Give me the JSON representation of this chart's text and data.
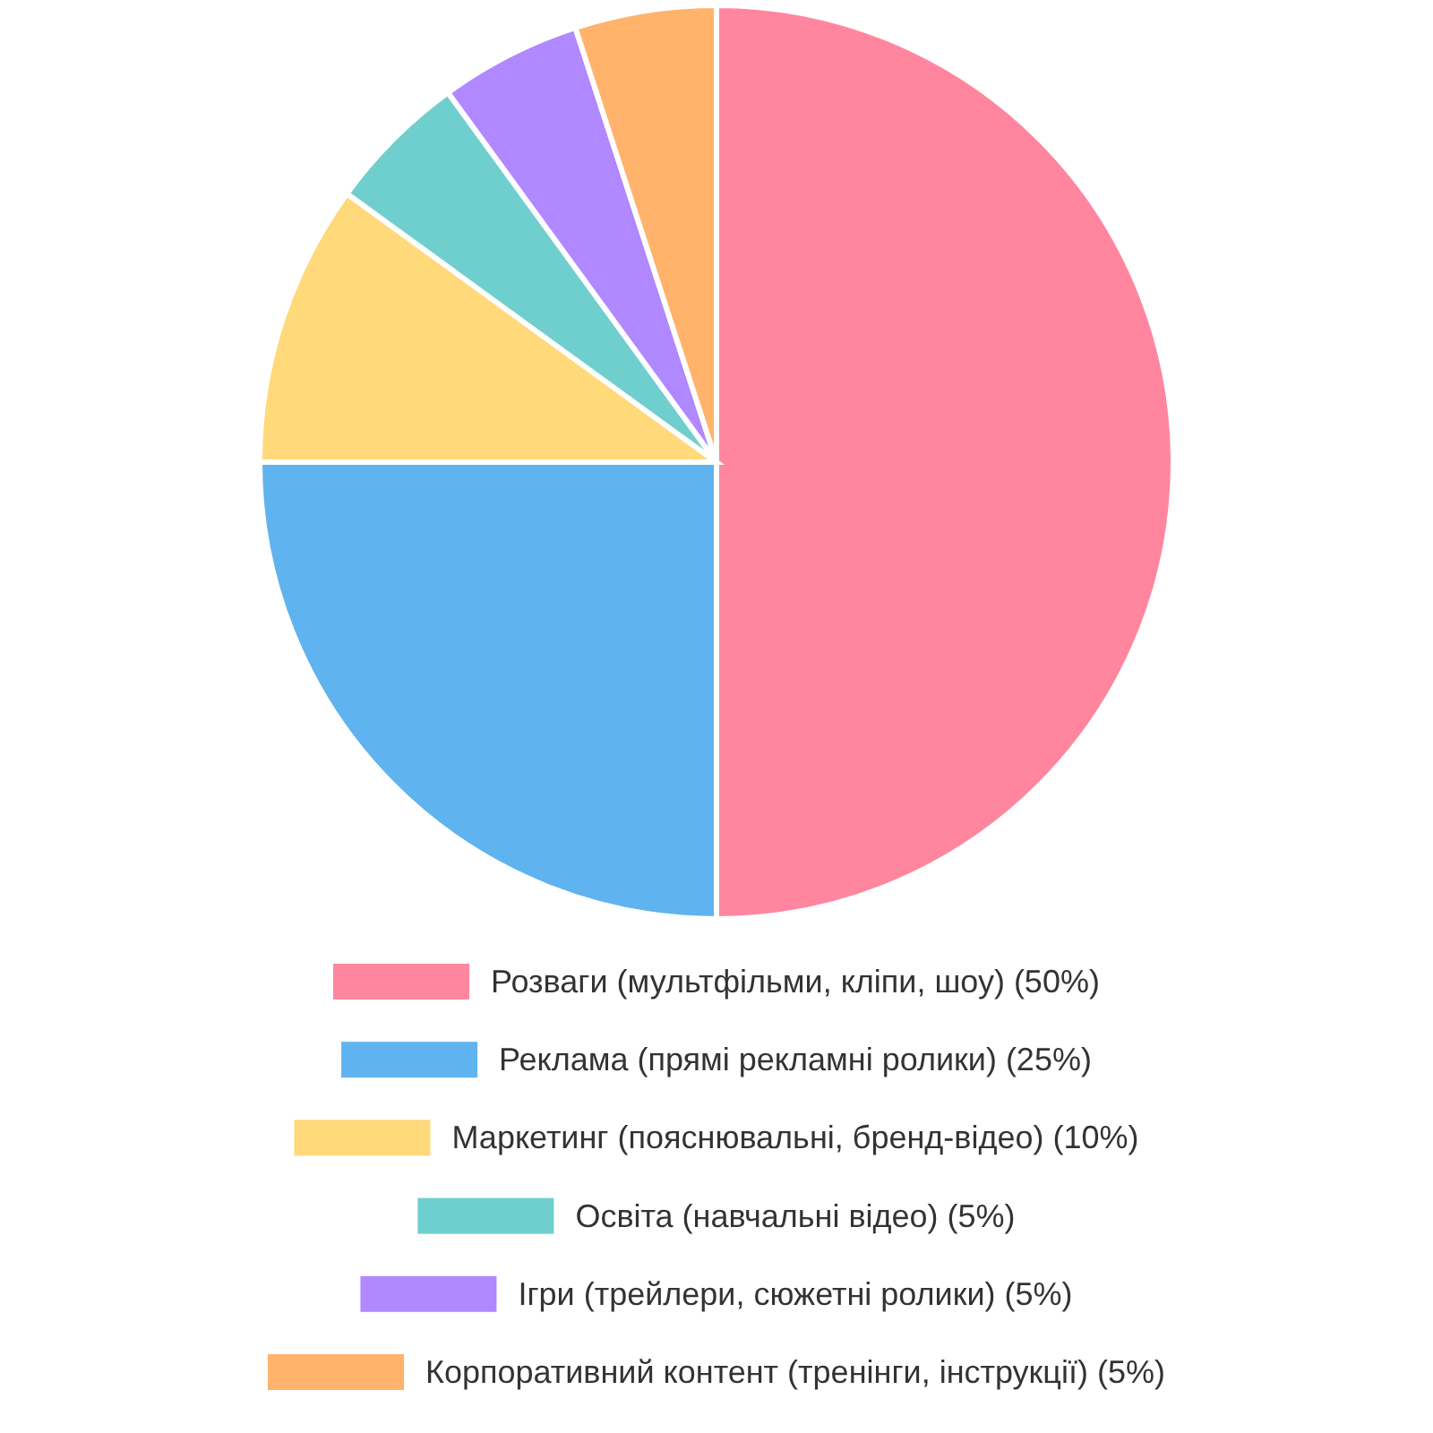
{
  "chart_data": {
    "type": "pie",
    "categories": [
      "Розваги (мультфільми, кліпи, шоу) (50%)",
      "Реклама (прямі рекламні ролики) (25%)",
      "Маркетинг (пояснювальні, бренд-відео) (10%)",
      "Освіта (навчальні відео) (5%)",
      "Ігри (трейлери, сюжетні ролики) (5%)",
      "Корпоративний контент (тренінги, інструкції) (5%)"
    ],
    "values": [
      50,
      25,
      10,
      5,
      5,
      5
    ],
    "colors": [
      "#ff869e",
      "#5fb3ee",
      "#ffd97a",
      "#6fcfce",
      "#b088ff",
      "#ffb36b"
    ],
    "legend": "bottom"
  }
}
